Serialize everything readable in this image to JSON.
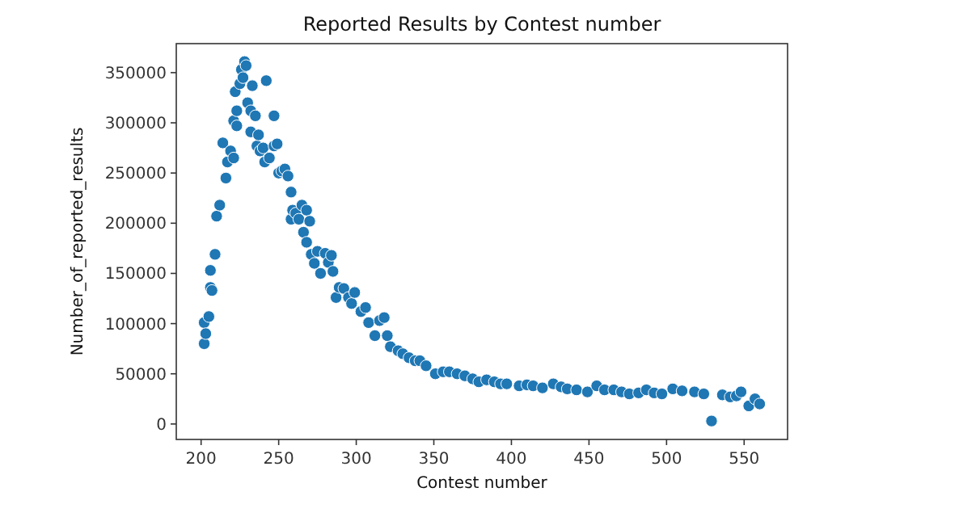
{
  "chart_data": {
    "type": "scatter",
    "title": "Reported Results by Contest number",
    "xlabel": "Contest number",
    "ylabel": "Number_of_reported_results",
    "xlim": [
      184,
      578
    ],
    "xticks": [
      200,
      250,
      300,
      350,
      400,
      450,
      500,
      550
    ],
    "ylim": [
      -15400,
      378900
    ],
    "yticks": [
      0,
      50000,
      100000,
      150000,
      200000,
      250000,
      300000,
      350000
    ],
    "grid": false,
    "marker": "circle",
    "series": [
      {
        "color": "#1f77b4",
        "x": [
          202,
          202,
          203,
          205,
          206,
          206,
          207,
          209,
          210,
          212,
          214,
          216,
          217,
          219,
          221,
          221,
          222,
          223,
          223,
          225,
          226,
          227,
          228,
          229,
          230,
          232,
          233,
          232,
          235,
          236,
          237,
          238,
          240,
          242,
          241,
          244,
          247,
          247,
          249,
          250,
          252,
          254,
          256,
          258,
          258,
          259,
          261,
          263,
          265,
          266,
          268,
          268,
          270,
          271,
          273,
          275,
          277,
          280,
          282,
          284,
          285,
          287,
          289,
          292,
          295,
          297,
          299,
          303,
          306,
          308,
          312,
          315,
          318,
          320,
          322,
          327,
          330,
          334,
          338,
          341,
          345,
          351,
          356,
          360,
          365,
          370,
          375,
          379,
          384,
          389,
          393,
          397,
          405,
          410,
          414,
          420,
          427,
          432,
          436,
          442,
          449,
          455,
          460,
          466,
          471,
          476,
          482,
          487,
          492,
          497,
          504,
          510,
          518,
          524,
          529,
          536,
          541,
          545,
          548,
          553,
          557,
          560
        ],
        "values": [
          80000,
          101000,
          90000,
          107000,
          153000,
          136000,
          133000,
          169000,
          207000,
          218000,
          280000,
          245000,
          261000,
          272000,
          265000,
          302000,
          331000,
          297000,
          312000,
          339000,
          353000,
          345000,
          361000,
          357000,
          320000,
          312000,
          337000,
          291000,
          307000,
          277000,
          288000,
          272000,
          275000,
          342000,
          261000,
          265000,
          307000,
          277000,
          279000,
          250000,
          252000,
          254000,
          247000,
          231000,
          204000,
          213000,
          210000,
          204000,
          218000,
          191000,
          213000,
          181000,
          202000,
          169000,
          160000,
          172000,
          150000,
          170000,
          161000,
          168000,
          152000,
          126000,
          136000,
          135000,
          126000,
          120000,
          131000,
          112000,
          116000,
          101000,
          88000,
          103000,
          106000,
          88000,
          77000,
          73000,
          70000,
          66000,
          63000,
          63000,
          58000,
          50000,
          52000,
          52000,
          50000,
          48000,
          45000,
          42000,
          44000,
          42000,
          40000,
          40000,
          38000,
          39000,
          38000,
          36000,
          40000,
          37000,
          35000,
          34000,
          32000,
          38000,
          34000,
          34000,
          32000,
          30000,
          31000,
          34000,
          31000,
          30000,
          35000,
          33000,
          32000,
          30000,
          3000,
          29000,
          27000,
          28000,
          32000,
          18000,
          25000,
          20000
        ]
      }
    ]
  }
}
